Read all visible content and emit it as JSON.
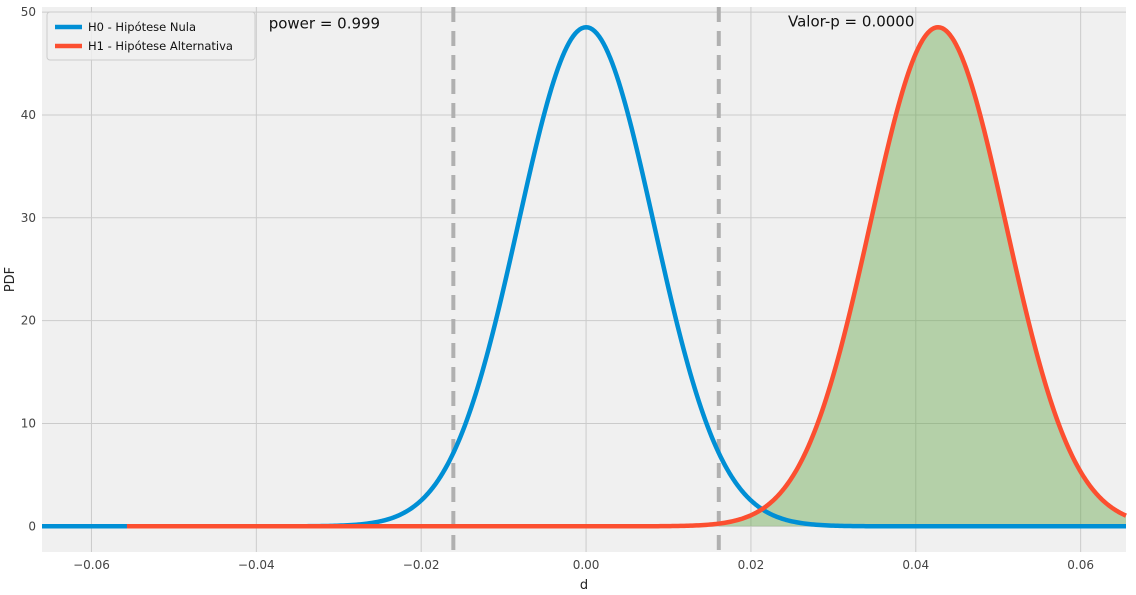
{
  "chart_data": {
    "type": "line",
    "xlabel": "d",
    "ylabel": "PDF",
    "xlim": [
      -0.066,
      0.0655
    ],
    "ylim": [
      -2.5,
      50.5
    ],
    "xticks": [
      -0.06,
      -0.04,
      -0.02,
      0.0,
      0.02,
      0.04,
      0.06
    ],
    "xtick_labels": [
      "−0.06",
      "−0.04",
      "−0.02",
      "0.00",
      "0.02",
      "0.04",
      "0.06"
    ],
    "yticks": [
      0,
      10,
      20,
      30,
      40,
      50
    ],
    "ytick_labels": [
      "0",
      "10",
      "20",
      "30",
      "40",
      "50"
    ],
    "grid": true,
    "legend_position": "top-left",
    "series": [
      {
        "name": "H0 - Hipótese Nula",
        "color": "#008fd5",
        "distribution": "normal",
        "mean": 0.0,
        "std": 0.00822,
        "x_range": [
          -0.066,
          0.0655
        ]
      },
      {
        "name": "H1 - Hipótese Alternativa",
        "color": "#fc4f30",
        "distribution": "normal",
        "mean": 0.0427,
        "std": 0.00822,
        "x_range": [
          -0.0557,
          0.0655
        ]
      }
    ],
    "critical_values": [
      -0.0161,
      0.0161
    ],
    "critical_line_color": "#b0b0b0",
    "fill": {
      "series": "H1 - Hipótese Alternativa",
      "from": 0.0161,
      "color": "#6aa84f",
      "opacity": 0.45
    },
    "annotations": [
      {
        "text": "power = 0.999",
        "x": -0.0385,
        "y": 48.4
      },
      {
        "text": "Valor-p = 0.0000",
        "x": 0.0245,
        "y": 48.6
      }
    ],
    "colors": {
      "plot_background": "#f0f0f0",
      "grid": "#cbcbcb"
    }
  }
}
